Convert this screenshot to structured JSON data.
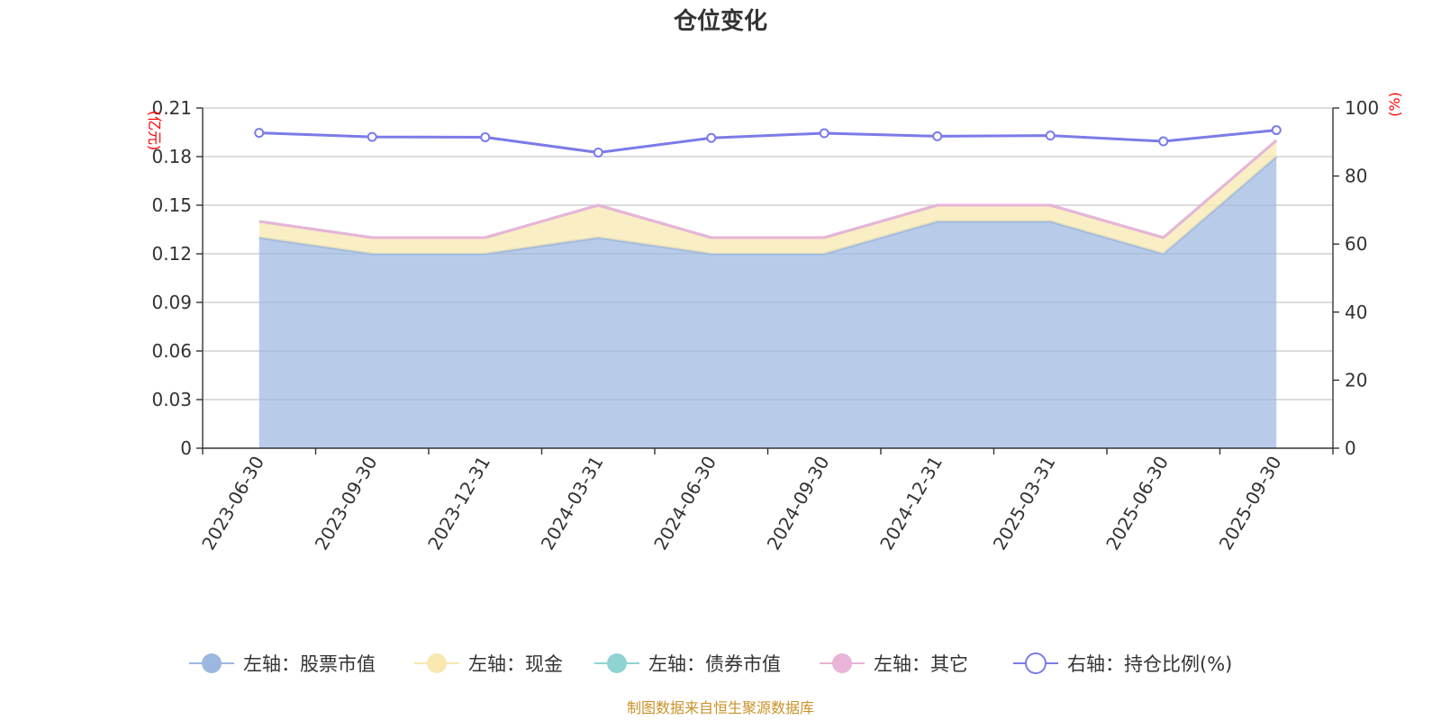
{
  "title": "仓位变化",
  "source_note": "制图数据来自恒生聚源数据库",
  "chart_data": {
    "type": "area",
    "x": [
      "2023-06-30",
      "2023-09-30",
      "2023-12-31",
      "2024-03-31",
      "2024-06-30",
      "2024-09-30",
      "2024-12-31",
      "2025-03-31",
      "2025-06-30",
      "2025-09-30"
    ],
    "left_axis": {
      "unit": "(亿元)",
      "ylim": [
        0,
        0.21
      ],
      "ticks": [
        "0",
        "0.03",
        "0.06",
        "0.09",
        "0.12",
        "0.15",
        "0.18",
        "0.21"
      ]
    },
    "right_axis": {
      "unit": "(%)",
      "ylim": [
        0,
        100
      ],
      "ticks": [
        "0",
        "20",
        "40",
        "60",
        "80",
        "100"
      ]
    },
    "stacked": true,
    "series": [
      {
        "name": "左轴：股票市值",
        "axis": "left",
        "color": "#9cb8e0",
        "values": [
          0.13,
          0.12,
          0.12,
          0.13,
          0.12,
          0.12,
          0.14,
          0.14,
          0.12,
          0.18
        ]
      },
      {
        "name": "左轴：现金",
        "axis": "left",
        "color": "#f8e8b0",
        "values": [
          0.01,
          0.01,
          0.01,
          0.02,
          0.01,
          0.01,
          0.01,
          0.01,
          0.01,
          0.01
        ]
      },
      {
        "name": "左轴：债券市值",
        "axis": "left",
        "color": "#8fd3d3",
        "values": [
          0,
          0,
          0,
          0,
          0,
          0,
          0,
          0,
          0,
          0
        ]
      },
      {
        "name": "左轴：其它",
        "axis": "left",
        "color": "#e8b4d8",
        "values": [
          0,
          0,
          0,
          0,
          0,
          0,
          0,
          0,
          0,
          0
        ]
      },
      {
        "name": "右轴：持仓比例(%)",
        "axis": "right",
        "color": "#7b7be8",
        "values": [
          92.7,
          91.5,
          91.4,
          86.9,
          91.2,
          92.6,
          91.7,
          91.9,
          90.2,
          93.5
        ]
      }
    ],
    "grid": true,
    "legend_position": "bottom"
  }
}
